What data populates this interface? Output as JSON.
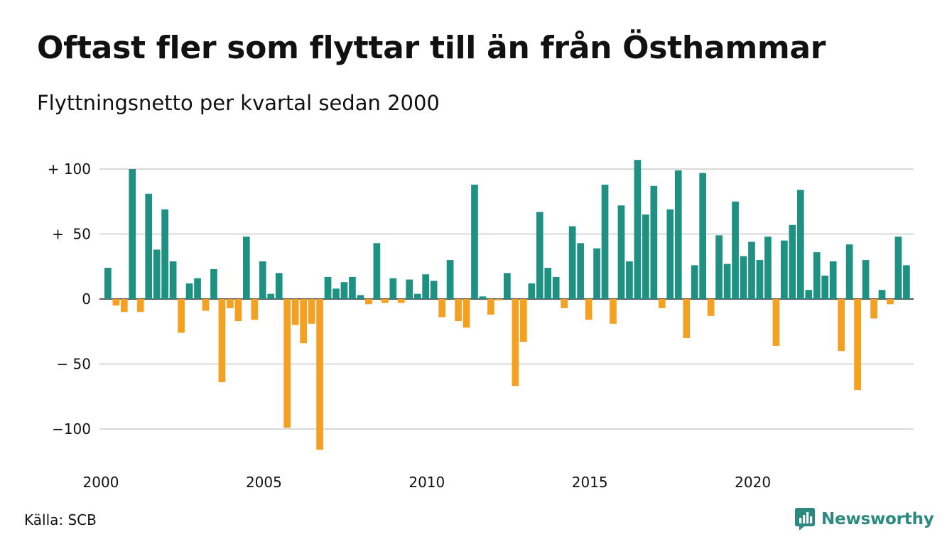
{
  "title": "Oftast fler som flyttar till än från Östhammar",
  "subtitle": "Flyttningsnetto per kvartal sedan 2000",
  "source": "Källa: SCB",
  "brand": {
    "name": "Newsworthy",
    "icon": "newsworthy-logo-icon"
  },
  "colors": {
    "positive": "#1f9183",
    "negative": "#f4a021",
    "grid": "#d9d9d9"
  },
  "chart_data": {
    "type": "bar",
    "title": "Oftast fler som flyttar till än från Östhammar",
    "subtitle": "Flyttningsnetto per kvartal sedan 2000",
    "xlabel": "",
    "ylabel": "",
    "ylim": [
      -120,
      110
    ],
    "grid": true,
    "y_ticks": [
      {
        "value": 100,
        "label": "+ 100"
      },
      {
        "value": 50,
        "label": "+  50"
      },
      {
        "value": 0,
        "label": "0"
      },
      {
        "value": -50,
        "label": "− 50"
      },
      {
        "value": -100,
        "label": "−100"
      }
    ],
    "x_ticks": [
      {
        "value": 2000,
        "label": "2000"
      },
      {
        "value": 2005,
        "label": "2005"
      },
      {
        "value": 2010,
        "label": "2010"
      },
      {
        "value": 2015,
        "label": "2015"
      },
      {
        "value": 2020,
        "label": "2020"
      }
    ],
    "start_year": 2000,
    "series": [
      {
        "values": [
          24,
          -5,
          -10,
          100,
          -10,
          81,
          38,
          69,
          29,
          -26,
          12,
          16,
          -9,
          23,
          -64,
          -7,
          -17,
          48,
          -16,
          29,
          4,
          20,
          -99,
          -20,
          -34,
          -19,
          -116,
          17,
          8,
          13,
          17,
          3,
          -4,
          43,
          -3,
          16,
          -3,
          15,
          4,
          19,
          14,
          -14,
          30,
          -17,
          -22,
          88,
          2,
          -12,
          -1,
          20,
          -67,
          -33,
          12,
          67,
          24,
          17,
          -7,
          56,
          43,
          -16,
          39,
          88,
          -19,
          72,
          29,
          107,
          65,
          87,
          -7,
          69,
          99,
          -30,
          26,
          97,
          -13,
          49,
          27,
          75,
          33,
          44,
          30,
          48,
          -36,
          45,
          57,
          84,
          7,
          36,
          18,
          29,
          -40,
          42,
          -70,
          30,
          -15,
          7,
          -4,
          48,
          26
        ]
      }
    ]
  }
}
